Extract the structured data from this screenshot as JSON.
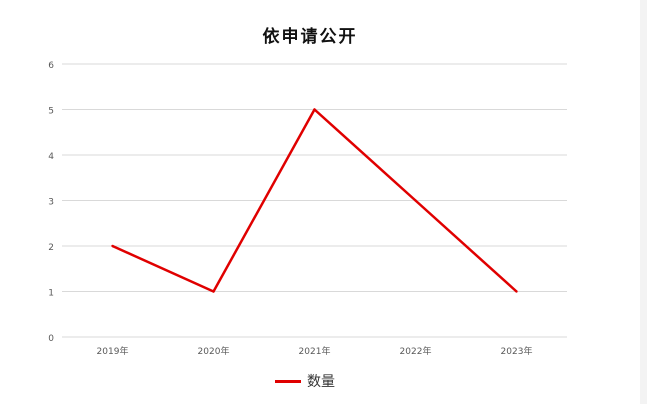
{
  "chart_data": {
    "type": "line",
    "title": "依申请公开",
    "categories": [
      "2019年",
      "2020年",
      "2021年",
      "2022年",
      "2023年"
    ],
    "series": [
      {
        "name": "数量",
        "values": [
          2,
          1,
          5,
          3,
          1
        ],
        "color": "#e00000"
      }
    ],
    "ylim": [
      0,
      6
    ],
    "yticks": [
      0,
      1,
      2,
      3,
      4,
      5,
      6
    ],
    "grid": true,
    "legend_position": "bottom"
  }
}
